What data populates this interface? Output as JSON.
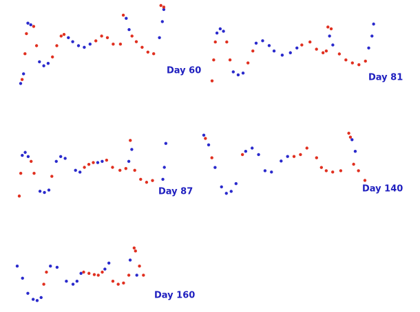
{
  "chart_data": [
    {
      "type": "scatter",
      "label": "Day 60",
      "xlim": [
        0,
        100
      ],
      "ylim": [
        0,
        100
      ],
      "series": [
        {
          "color": "#2a2acc",
          "x": [
            0,
            2,
            5,
            7,
            13,
            16,
            19,
            33,
            36,
            40,
            44,
            48,
            73,
            75,
            96,
            98,
            99
          ],
          "y": [
            3,
            15,
            78,
            76,
            30,
            25,
            28,
            60,
            55,
            50,
            48,
            52,
            84,
            70,
            60,
            80,
            95
          ]
        },
        {
          "color": "#e03020",
          "x": [
            1,
            3,
            4,
            9,
            11,
            22,
            25,
            28,
            30,
            52,
            56,
            60,
            64,
            69,
            71,
            77,
            80,
            84,
            88,
            92,
            97,
            99
          ],
          "y": [
            8,
            40,
            65,
            74,
            50,
            36,
            50,
            62,
            64,
            56,
            62,
            60,
            52,
            52,
            88,
            62,
            55,
            48,
            42,
            40,
            100,
            98
          ]
        }
      ]
    },
    {
      "type": "scatter",
      "label": "Day 81",
      "xlim": [
        0,
        100
      ],
      "ylim": [
        0,
        100
      ],
      "series": [
        {
          "color": "#2a2acc",
          "x": [
            3,
            5,
            7,
            13,
            16,
            19,
            27,
            31,
            35,
            38,
            43,
            48,
            52,
            72,
            74,
            96,
            98,
            99
          ],
          "y": [
            85,
            92,
            88,
            20,
            15,
            18,
            68,
            72,
            64,
            55,
            48,
            52,
            60,
            80,
            65,
            60,
            80,
            100
          ]
        },
        {
          "color": "#e03020",
          "x": [
            0,
            1,
            2,
            9,
            11,
            22,
            25,
            55,
            60,
            64,
            68,
            70,
            71,
            73,
            78,
            82,
            86,
            90,
            94
          ],
          "y": [
            5,
            40,
            70,
            70,
            40,
            35,
            55,
            65,
            70,
            58,
            52,
            55,
            95,
            92,
            50,
            40,
            35,
            32,
            38
          ]
        }
      ]
    },
    {
      "type": "scatter",
      "label": "Day 87",
      "xlim": [
        0,
        100
      ],
      "ylim": [
        0,
        100
      ],
      "series": [
        {
          "color": "#2a2acc",
          "x": [
            2,
            4,
            6,
            14,
            17,
            20,
            25,
            28,
            31,
            38,
            41,
            53,
            56,
            74,
            76,
            97,
            98,
            99
          ],
          "y": [
            70,
            75,
            68,
            10,
            8,
            12,
            60,
            68,
            65,
            45,
            42,
            58,
            60,
            60,
            80,
            30,
            50,
            90
          ]
        },
        {
          "color": "#e03020",
          "x": [
            0,
            1,
            8,
            10,
            22,
            44,
            47,
            50,
            59,
            63,
            68,
            72,
            75,
            78,
            82,
            86,
            90
          ],
          "y": [
            2,
            40,
            60,
            40,
            35,
            50,
            55,
            58,
            62,
            50,
            45,
            48,
            95,
            45,
            30,
            25,
            28
          ]
        }
      ]
    },
    {
      "type": "scatter",
      "label": "Day 140",
      "xlim": [
        0,
        100
      ],
      "ylim": [
        0,
        100
      ],
      "series": [
        {
          "color": "#2a2acc",
          "x": [
            0,
            3,
            7,
            11,
            14,
            17,
            20,
            26,
            30,
            34,
            38,
            42,
            48,
            52,
            92,
            94
          ],
          "y": [
            95,
            80,
            45,
            15,
            5,
            8,
            20,
            70,
            75,
            65,
            40,
            38,
            55,
            62,
            88,
            70
          ]
        },
        {
          "color": "#e03020",
          "x": [
            1,
            5,
            24,
            56,
            60,
            64,
            70,
            73,
            76,
            80,
            85,
            90,
            91,
            93,
            96,
            100
          ],
          "y": [
            90,
            60,
            65,
            62,
            65,
            75,
            60,
            45,
            40,
            38,
            40,
            98,
            92,
            50,
            40,
            25
          ]
        }
      ]
    },
    {
      "type": "scatter",
      "label": "Day 160",
      "xlim": [
        0,
        100
      ],
      "ylim": [
        0,
        100
      ],
      "series": [
        {
          "color": "#2a2acc",
          "x": [
            0,
            4,
            8,
            12,
            15,
            18,
            25,
            30,
            37,
            42,
            45,
            48,
            66,
            69,
            85,
            90
          ],
          "y": [
            60,
            40,
            15,
            5,
            3,
            8,
            60,
            58,
            35,
            30,
            35,
            48,
            55,
            65,
            70,
            45
          ]
        },
        {
          "color": "#e03020",
          "x": [
            20,
            22,
            50,
            54,
            58,
            61,
            64,
            72,
            76,
            80,
            84,
            88,
            89,
            92,
            95
          ],
          "y": [
            30,
            50,
            50,
            48,
            46,
            45,
            50,
            35,
            30,
            32,
            45,
            90,
            85,
            60,
            45
          ]
        }
      ]
    }
  ]
}
